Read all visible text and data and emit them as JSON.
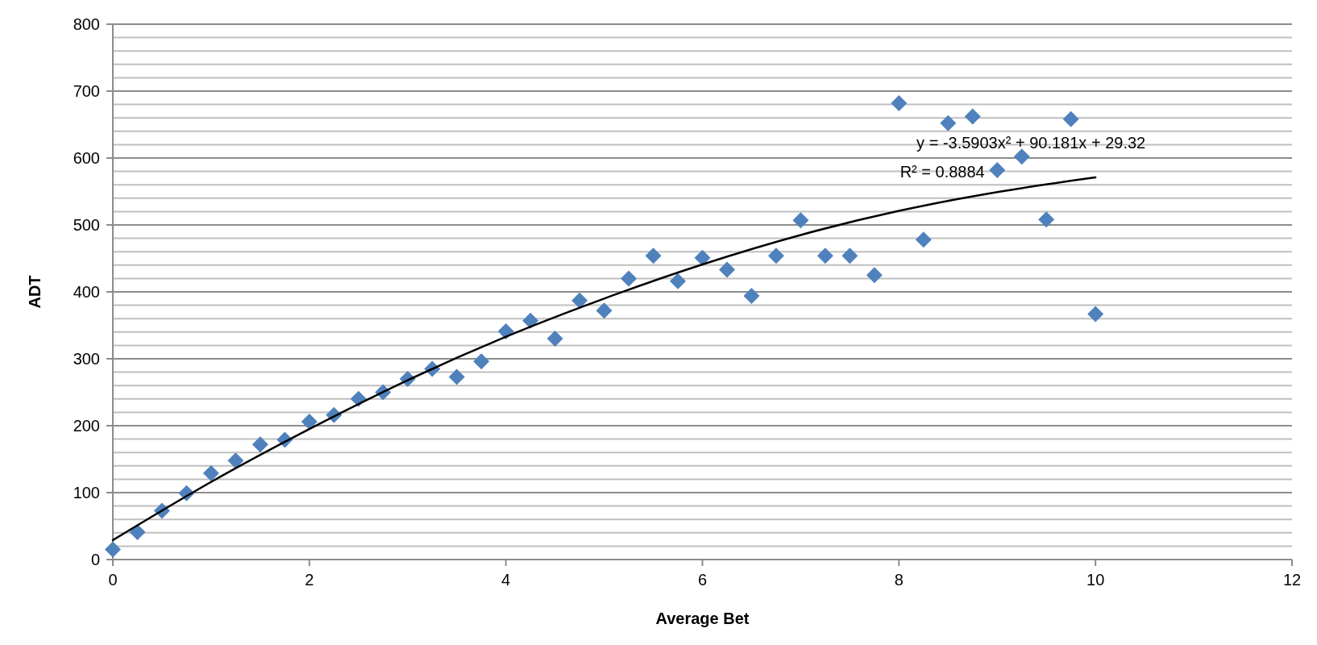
{
  "chart_data": {
    "type": "scatter",
    "xlabel": "Average Bet",
    "ylabel": "ADT",
    "xlim": [
      0,
      12
    ],
    "xticks": [
      0,
      2,
      4,
      6,
      8,
      10,
      12
    ],
    "ylim": [
      0,
      800
    ],
    "yticks": [
      0,
      {
        "value": 20,
        "label": null
      },
      {
        "value": 40,
        "label": null
      },
      {
        "value": 60,
        "label": null
      },
      {
        "value": 80,
        "label": null
      },
      100,
      {
        "value": 120,
        "label": null
      },
      {
        "value": 140,
        "label": null
      },
      {
        "value": 160,
        "label": null
      },
      {
        "value": 180,
        "label": null
      },
      200,
      {
        "value": 220,
        "label": null
      },
      {
        "value": 240,
        "label": null
      },
      {
        "value": 260,
        "label": null
      },
      {
        "value": 280,
        "label": null
      },
      300,
      {
        "value": 320,
        "label": null
      },
      {
        "value": 340,
        "label": null
      },
      {
        "value": 360,
        "label": null
      },
      {
        "value": 380,
        "label": null
      },
      400,
      {
        "value": 420,
        "label": null
      },
      {
        "value": 440,
        "label": null
      },
      {
        "value": 460,
        "label": null
      },
      {
        "value": 480,
        "label": null
      },
      500,
      {
        "value": 520,
        "label": null
      },
      {
        "value": 540,
        "label": null
      },
      {
        "value": 560,
        "label": null
      },
      {
        "value": 580,
        "label": null
      },
      600,
      {
        "value": 620,
        "label": null
      },
      {
        "value": 640,
        "label": null
      },
      {
        "value": 660,
        "label": null
      },
      {
        "value": 680,
        "label": null
      },
      700,
      {
        "value": 720,
        "label": null
      },
      {
        "value": 740,
        "label": null
      },
      {
        "value": 760,
        "label": null
      },
      {
        "value": 780,
        "label": null
      },
      800
    ],
    "grid": "y",
    "marker": "diamond",
    "series": [
      {
        "color": "#4f81bd",
        "x": [
          0,
          0.25,
          0.5,
          0.75,
          1,
          1.25,
          1.5,
          1.75,
          2,
          2.25,
          2.5,
          2.75,
          3,
          3.25,
          3.5,
          3.75,
          4,
          4.25,
          4.5,
          4.75,
          5,
          5.25,
          5.5,
          5.75,
          6,
          6.25,
          6.5,
          6.75,
          7,
          7.25,
          7.5,
          7.75,
          8,
          8.25,
          8.5,
          8.75,
          9,
          9.25,
          9.5,
          9.75,
          10
        ],
        "values": [
          15,
          41,
          73,
          99,
          129,
          148,
          172,
          179,
          206,
          216,
          240,
          250,
          270,
          285,
          273,
          296,
          341,
          357,
          330,
          387,
          372,
          420,
          454,
          416,
          451,
          433,
          394,
          454,
          507,
          454,
          454,
          425,
          682,
          478,
          652,
          662,
          582,
          602,
          508,
          658,
          367
        ]
      },
      {
        "type": "line",
        "color": "#000000",
        "x": [
          0,
          1,
          2,
          3,
          4,
          5,
          6,
          7,
          8,
          9,
          10
        ],
        "values": [
          29,
          116,
          195,
          268,
          333,
          390,
          441,
          485,
          521,
          549,
          571
        ],
        "marker": "none",
        "line_style": "solid"
      }
    ],
    "annotations": [
      "y = -3.5903x² + 90.181x + 29.32",
      "R² = 0.8884"
    ]
  }
}
